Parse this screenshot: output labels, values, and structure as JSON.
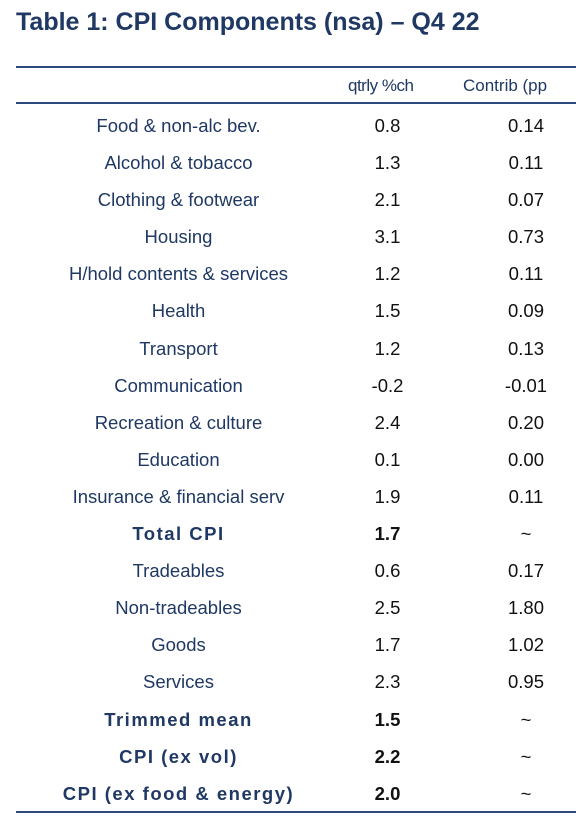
{
  "title": "Table 1: CPI Components (nsa) – Q4 22",
  "header": {
    "col_qtrly": "qtrly %ch",
    "col_contrib": "Contrib (pp"
  },
  "rows": [
    {
      "label": "Food & non-alc bev.",
      "qtrly": "0.8",
      "contrib": "0.14",
      "bold": false
    },
    {
      "label": "Alcohol & tobacco",
      "qtrly": "1.3",
      "contrib": "0.11",
      "bold": false
    },
    {
      "label": "Clothing & footwear",
      "qtrly": "2.1",
      "contrib": "0.07",
      "bold": false
    },
    {
      "label": "Housing",
      "qtrly": "3.1",
      "contrib": "0.73",
      "bold": false
    },
    {
      "label": "H/hold contents & services",
      "qtrly": "1.2",
      "contrib": "0.11",
      "bold": false
    },
    {
      "label": "Health",
      "qtrly": "1.5",
      "contrib": "0.09",
      "bold": false
    },
    {
      "label": "Transport",
      "qtrly": "1.2",
      "contrib": "0.13",
      "bold": false
    },
    {
      "label": "Communication",
      "qtrly": "-0.2",
      "contrib": "-0.01",
      "bold": false
    },
    {
      "label": "Recreation & culture",
      "qtrly": "2.4",
      "contrib": "0.20",
      "bold": false
    },
    {
      "label": "Education",
      "qtrly": "0.1",
      "contrib": "0.00",
      "bold": false
    },
    {
      "label": "Insurance & financial serv",
      "qtrly": "1.9",
      "contrib": "0.11",
      "bold": false
    },
    {
      "label": "Total CPI",
      "qtrly": "1.7",
      "contrib": "~",
      "bold": true
    },
    {
      "label": "Tradeables",
      "qtrly": "0.6",
      "contrib": "0.17",
      "bold": false
    },
    {
      "label": "Non-tradeables",
      "qtrly": "2.5",
      "contrib": "1.80",
      "bold": false
    },
    {
      "label": "Goods",
      "qtrly": "1.7",
      "contrib": "1.02",
      "bold": false
    },
    {
      "label": "Services",
      "qtrly": "2.3",
      "contrib": "0.95",
      "bold": false
    },
    {
      "label": "Trimmed mean",
      "qtrly": "1.5",
      "contrib": "~",
      "bold": true
    },
    {
      "label": "CPI (ex vol)",
      "qtrly": "2.2",
      "contrib": "~",
      "bold": true
    },
    {
      "label": "CPI (ex food & energy)",
      "qtrly": "2.0",
      "contrib": "~",
      "bold": true
    }
  ]
}
